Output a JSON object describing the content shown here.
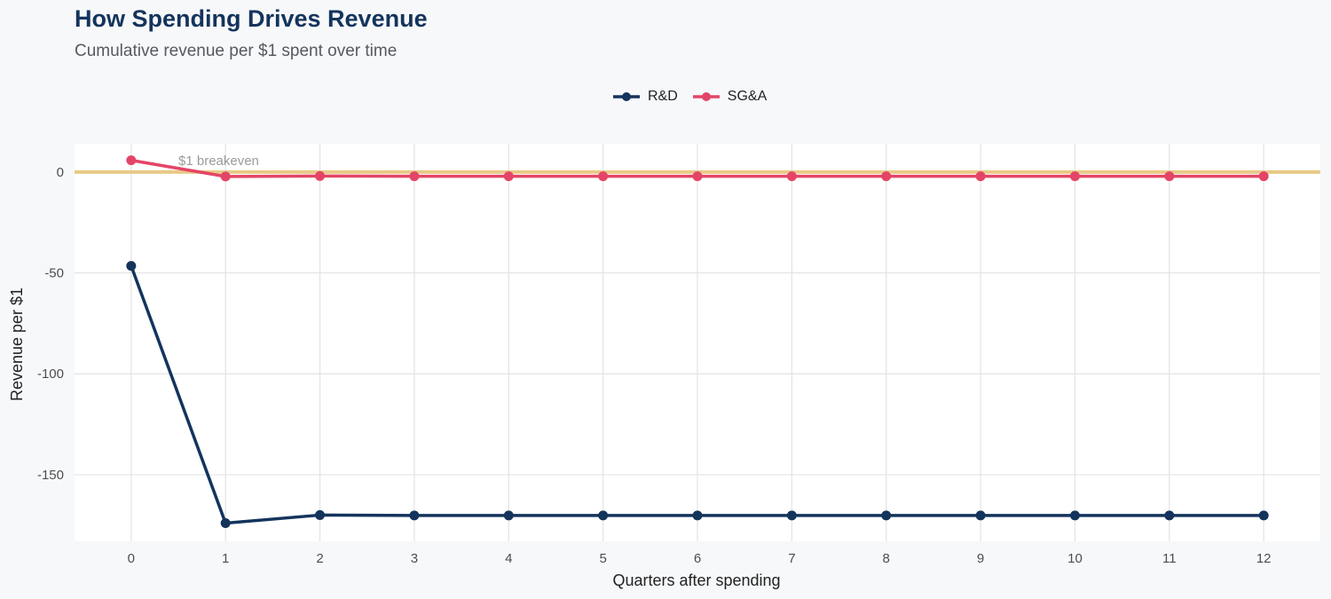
{
  "title": "How Spending Drives Revenue",
  "subtitle": "Cumulative revenue per $1 spent over time",
  "colors": {
    "rd": "#14345c",
    "sga": "#e44566",
    "breakeven": "#e9c987"
  },
  "chart_data": {
    "type": "line",
    "title": "How Spending Drives Revenue",
    "subtitle": "Cumulative revenue per $1 spent over time",
    "xlabel": "Quarters after spending",
    "ylabel": "Revenue per $1",
    "x": [
      0,
      1,
      2,
      3,
      4,
      5,
      6,
      7,
      8,
      9,
      10,
      11,
      12
    ],
    "xlim": [
      -0.6,
      12.6
    ],
    "ylim": [
      -183,
      14
    ],
    "yticks": [
      0,
      -50,
      -100,
      -150
    ],
    "xticks": [
      0,
      1,
      2,
      3,
      4,
      5,
      6,
      7,
      8,
      9,
      10,
      11,
      12
    ],
    "series": [
      {
        "name": "R&D",
        "color": "#14345c",
        "values": [
          -46.5,
          -174,
          -170,
          -170.2,
          -170.2,
          -170.2,
          -170.2,
          -170.2,
          -170.2,
          -170.2,
          -170.2,
          -170.2,
          -170.2
        ]
      },
      {
        "name": "SG&A",
        "color": "#e44566",
        "values": [
          5.8,
          -2.2,
          -2.0,
          -2.1,
          -2.1,
          -2.1,
          -2.1,
          -2.1,
          -2.1,
          -2.1,
          -2.1,
          -2.1,
          -2.1
        ]
      }
    ],
    "reference_line": {
      "y": 0,
      "label": "$1 breakeven",
      "color": "#e9c987"
    },
    "legend_position": "top-center",
    "grid": true
  }
}
